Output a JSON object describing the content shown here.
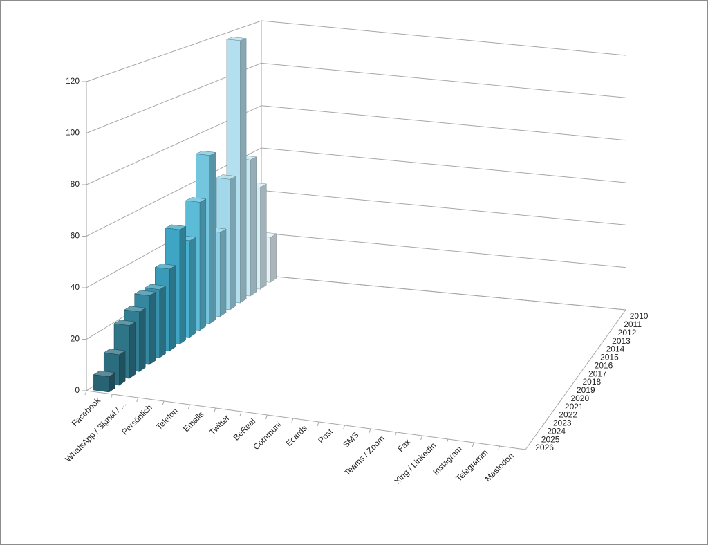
{
  "chart_data": {
    "type": "bar3d",
    "categories": [
      "Facebook",
      "WhatsApp / Signal / ...",
      "Persönlich",
      "Telefon",
      "Emails",
      "Twitter",
      "BeReal",
      "Communi",
      "Ecards",
      "Post",
      "SMS",
      "Teams / Zoom",
      "Fax",
      "Xing / LinkedIn",
      "Instagram",
      "Telegramm",
      "Mastodon"
    ],
    "ylim": [
      0,
      120
    ],
    "yticks": [
      0,
      20,
      40,
      60,
      80,
      100,
      120
    ],
    "grid": true,
    "series": [
      {
        "name": "2010",
        "color": "#e4f3f8",
        "values": [
          21,
          null,
          null,
          null,
          null,
          null,
          null,
          null,
          null,
          null,
          null,
          null,
          null,
          null,
          null,
          null,
          null
        ]
      },
      {
        "name": "2011",
        "color": "#d6eef6",
        "values": [
          47,
          null,
          null,
          null,
          null,
          null,
          null,
          null,
          null,
          null,
          null,
          null,
          null,
          null,
          null,
          null,
          null
        ]
      },
      {
        "name": "2012",
        "color": "#c6e7f2",
        "values": [
          62,
          null,
          null,
          null,
          null,
          null,
          null,
          null,
          null,
          null,
          null,
          null,
          null,
          null,
          null,
          null,
          null
        ]
      },
      {
        "name": "2013",
        "color": "#b4dfee",
        "values": [
          118,
          null,
          null,
          null,
          null,
          null,
          null,
          null,
          null,
          null,
          null,
          null,
          null,
          null,
          null,
          null,
          null
        ]
      },
      {
        "name": "2014",
        "color": "#a2d8ea",
        "values": [
          58,
          null,
          null,
          null,
          null,
          null,
          null,
          null,
          null,
          null,
          null,
          null,
          null,
          null,
          null,
          null,
          null
        ]
      },
      {
        "name": "2015",
        "color": "#8ccfe4",
        "values": [
          37,
          null,
          null,
          null,
          null,
          null,
          null,
          null,
          null,
          null,
          null,
          null,
          null,
          null,
          null,
          null,
          null
        ]
      },
      {
        "name": "2016",
        "color": "#74c5de",
        "values": [
          73,
          null,
          null,
          null,
          null,
          null,
          null,
          null,
          null,
          null,
          null,
          null,
          null,
          null,
          null,
          null,
          null
        ]
      },
      {
        "name": "2017",
        "color": "#5cbcd8",
        "values": [
          55,
          null,
          null,
          null,
          null,
          null,
          null,
          null,
          null,
          null,
          null,
          null,
          null,
          null,
          null,
          null,
          null
        ]
      },
      {
        "name": "2018",
        "color": "#48b1cf",
        "values": [
          41,
          null,
          null,
          null,
          null,
          null,
          null,
          null,
          null,
          null,
          null,
          null,
          null,
          null,
          null,
          null,
          null
        ]
      },
      {
        "name": "2019",
        "color": "#3ea6c4",
        "values": [
          48,
          null,
          null,
          null,
          null,
          null,
          null,
          null,
          null,
          null,
          null,
          null,
          null,
          null,
          null,
          null,
          null
        ]
      },
      {
        "name": "2020",
        "color": "#3a9bb8",
        "values": [
          34,
          null,
          null,
          null,
          null,
          null,
          null,
          null,
          null,
          null,
          null,
          null,
          null,
          null,
          null,
          null,
          null
        ]
      },
      {
        "name": "2021",
        "color": "#3791ac",
        "values": [
          28,
          null,
          null,
          null,
          null,
          null,
          null,
          null,
          null,
          null,
          null,
          null,
          null,
          null,
          null,
          null,
          null
        ]
      },
      {
        "name": "2022",
        "color": "#3487a0",
        "values": [
          28,
          null,
          null,
          null,
          null,
          null,
          null,
          null,
          null,
          null,
          null,
          null,
          null,
          null,
          null,
          null,
          null
        ]
      },
      {
        "name": "2023",
        "color": "#317e94",
        "values": [
          24,
          null,
          null,
          null,
          null,
          null,
          null,
          null,
          null,
          null,
          null,
          null,
          null,
          null,
          null,
          null,
          null
        ]
      },
      {
        "name": "2024",
        "color": "#2e7588",
        "values": [
          21,
          null,
          null,
          null,
          null,
          null,
          null,
          null,
          null,
          null,
          null,
          null,
          null,
          null,
          null,
          null,
          null
        ]
      },
      {
        "name": "2025",
        "color": "#2b6c7e",
        "values": [
          12,
          null,
          null,
          null,
          null,
          null,
          null,
          null,
          null,
          null,
          null,
          null,
          null,
          null,
          null,
          null,
          null
        ]
      },
      {
        "name": "2026",
        "color": "#286374",
        "values": [
          6,
          null,
          null,
          null,
          null,
          null,
          null,
          null,
          null,
          null,
          null,
          null,
          null,
          null,
          null,
          null,
          null
        ]
      }
    ]
  }
}
